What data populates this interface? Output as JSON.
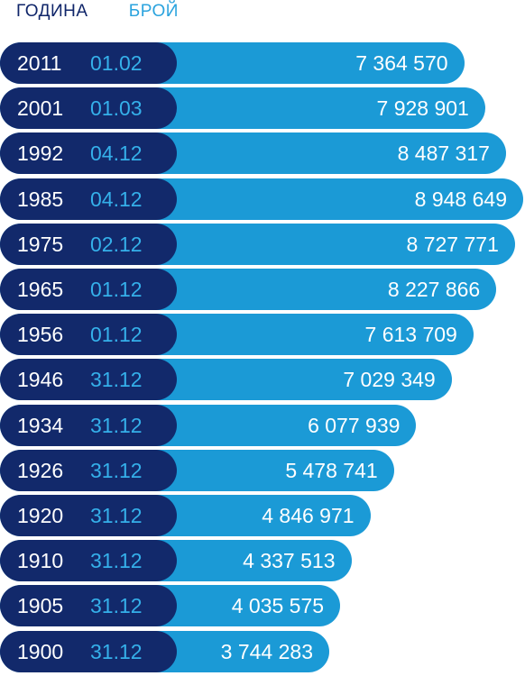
{
  "header": {
    "year_label": "ГОДИНА",
    "count_label": "БРОЙ"
  },
  "colors": {
    "dark": "#12296b",
    "bar": "#1b9ad6",
    "date": "#35b0ea"
  },
  "chart_data": {
    "type": "bar",
    "orientation": "horizontal",
    "rows": [
      {
        "year": "2011",
        "date": "01.02",
        "value": 7364570,
        "label": "7 364 570"
      },
      {
        "year": "2001",
        "date": "01.03",
        "value": 7928901,
        "label": "7 928 901"
      },
      {
        "year": "1992",
        "date": "04.12",
        "value": 8487317,
        "label": "8 487 317"
      },
      {
        "year": "1985",
        "date": "04.12",
        "value": 8948649,
        "label": "8 948 649"
      },
      {
        "year": "1975",
        "date": "02.12",
        "value": 8727771,
        "label": "8 727 771"
      },
      {
        "year": "1965",
        "date": "01.12",
        "value": 8227866,
        "label": "8 227 866"
      },
      {
        "year": "1956",
        "date": "01.12",
        "value": 7613709,
        "label": "7 613 709"
      },
      {
        "year": "1946",
        "date": "31.12",
        "value": 7029349,
        "label": "7 029 349"
      },
      {
        "year": "1934",
        "date": "31.12",
        "value": 6077939,
        "label": "6 077 939"
      },
      {
        "year": "1926",
        "date": "31.12",
        "value": 5478741,
        "label": "5 478 741"
      },
      {
        "year": "1920",
        "date": "31.12",
        "value": 4846971,
        "label": "4 846 971"
      },
      {
        "year": "1910",
        "date": "31.12",
        "value": 4337513,
        "label": "4 337 513"
      },
      {
        "year": "1905",
        "date": "31.12",
        "value": 4035575,
        "label": "4 035 575"
      },
      {
        "year": "1900",
        "date": "31.12",
        "value": 3744283,
        "label": "3 744 283"
      }
    ]
  }
}
